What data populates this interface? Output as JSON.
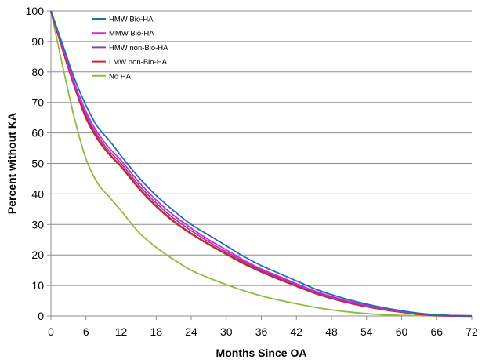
{
  "chart_data": {
    "type": "line",
    "title": "",
    "xlabel": "Months Since OA",
    "ylabel": "Percent without KA",
    "xlim": [
      0,
      72
    ],
    "ylim": [
      0,
      100
    ],
    "x_ticks": [
      0,
      6,
      12,
      18,
      24,
      30,
      36,
      42,
      48,
      54,
      60,
      66,
      72
    ],
    "y_ticks": [
      0,
      10,
      20,
      30,
      40,
      50,
      60,
      70,
      80,
      90,
      100
    ],
    "grid": "horizontal",
    "legend_position": "top-left",
    "series": [
      {
        "name": "HMW Bio-HA",
        "color": "#1f6fb5",
        "x": [
          0,
          2,
          4,
          6,
          8,
          10,
          12,
          15,
          18,
          21,
          24,
          27,
          30,
          33,
          36,
          39,
          42,
          45,
          48,
          51,
          54,
          57,
          60,
          63,
          66,
          69,
          72
        ],
        "y": [
          100,
          89,
          78,
          69,
          62,
          57.5,
          52.5,
          45.5,
          39.5,
          34.5,
          30,
          26.5,
          23,
          19.5,
          16.5,
          14,
          11.5,
          9,
          7,
          5.3,
          3.9,
          2.7,
          1.7,
          0.9,
          0.4,
          0.1,
          0
        ]
      },
      {
        "name": "MMW Bio-HA",
        "color": "#e020e0",
        "x": [
          0,
          2,
          4,
          6,
          8,
          10,
          12,
          15,
          18,
          21,
          24,
          27,
          30,
          33,
          36,
          39,
          42,
          45,
          48,
          51,
          54,
          57,
          60,
          63,
          66,
          69,
          72
        ],
        "y": [
          100,
          88.5,
          76.5,
          67,
          60,
          55,
          51,
          44,
          38,
          33,
          28.8,
          25,
          21.7,
          18.3,
          15.4,
          13,
          10.6,
          8.3,
          6.4,
          4.8,
          3.5,
          2.4,
          1.5,
          0.8,
          0.3,
          0.1,
          0
        ]
      },
      {
        "name": "HMW non-Bio-HA",
        "color": "#7b4fa5",
        "x": [
          0,
          2,
          4,
          6,
          8,
          10,
          12,
          15,
          18,
          21,
          24,
          27,
          30,
          33,
          36,
          39,
          42,
          45,
          48,
          51,
          54,
          57,
          60,
          63,
          66,
          69,
          72
        ],
        "y": [
          100,
          88,
          76,
          66,
          59,
          54,
          50,
          43,
          37,
          32,
          28,
          24.3,
          21,
          17.8,
          15,
          12.6,
          10.2,
          8,
          6.1,
          4.6,
          3.3,
          2.3,
          1.4,
          0.7,
          0.3,
          0.1,
          0
        ]
      },
      {
        "name": "LMW non-Bio-HA",
        "color": "#d0202a",
        "x": [
          0,
          2,
          4,
          6,
          8,
          10,
          12,
          15,
          18,
          21,
          24,
          27,
          30,
          33,
          36,
          39,
          42,
          45,
          48,
          51,
          54,
          57,
          60,
          63,
          66,
          69,
          72
        ],
        "y": [
          100,
          87.5,
          75.5,
          65,
          58,
          53,
          49,
          42,
          36,
          31,
          27,
          23.5,
          20.3,
          17.2,
          14.5,
          12.1,
          9.8,
          7.6,
          5.8,
          4.3,
          3.1,
          2.1,
          1.3,
          0.6,
          0.2,
          0.05,
          0
        ]
      },
      {
        "name": "No HA",
        "color": "#8fbc3c",
        "x": [
          0,
          2,
          4,
          6,
          8,
          10,
          12,
          15,
          18,
          21,
          24,
          27,
          30,
          33,
          36,
          39,
          42,
          45,
          48,
          51,
          54,
          57,
          60,
          63,
          66,
          69,
          72
        ],
        "y": [
          100,
          82,
          65,
          51.5,
          43.5,
          39,
          34.5,
          27.5,
          22.5,
          18.5,
          15,
          12.5,
          10.3,
          8.3,
          6.6,
          5.2,
          4,
          2.9,
          2,
          1.3,
          0.8,
          0.4,
          0.2,
          0.1,
          0.05,
          0,
          0
        ]
      }
    ]
  }
}
